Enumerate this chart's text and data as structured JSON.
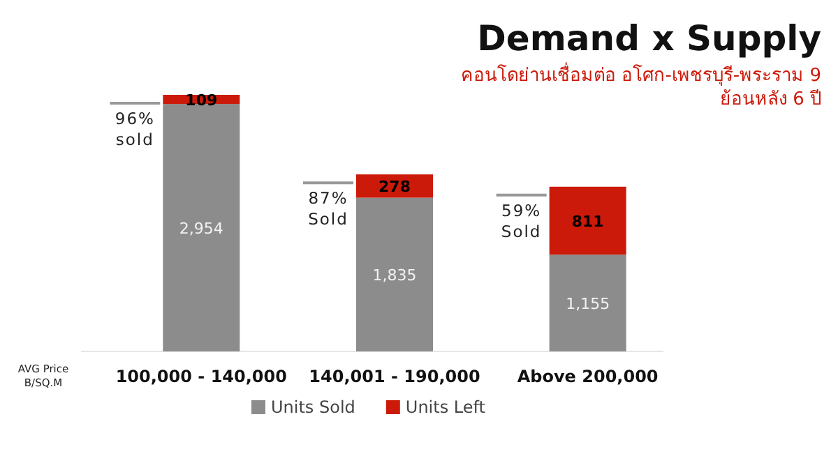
{
  "chart_data": {
    "type": "bar",
    "title": "Demand x Supply",
    "subtitle": "คอนโดย่านเชื่อมต่อ อโศก-เพชรบุรี-พระราม 9 ย้อนหลัง 6 ปี",
    "xlabel": "AVG Price B/SQ.M",
    "categories": [
      "100,000 - 140,000",
      "140,001 - 190,000",
      "Above 200,000"
    ],
    "stacked": true,
    "legend": "bottom",
    "series": [
      {
        "name": "Units Sold",
        "color": "#8c8c8c",
        "values": [
          2954,
          1835,
          1155
        ],
        "value_labels": [
          "2,954",
          "1,835",
          "1,155"
        ]
      },
      {
        "name": "Units Left",
        "color": "#cc1a0a",
        "values": [
          109,
          278,
          811
        ],
        "value_labels": [
          "109",
          "278",
          "811"
        ]
      }
    ],
    "annotations": [
      "96% sold",
      "87% Sold",
      "59% Sold"
    ]
  }
}
